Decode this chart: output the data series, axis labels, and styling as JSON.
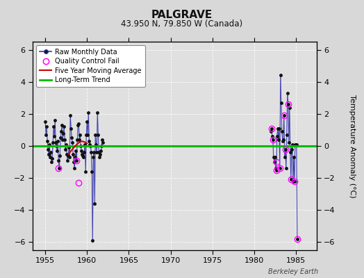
{
  "title": "PALGRAVE",
  "subtitle": "43.950 N, 79.850 W (Canada)",
  "ylabel": "Temperature Anomaly (°C)",
  "credit": "Berkeley Earth",
  "xlim": [
    1953.5,
    1987.5
  ],
  "ylim": [
    -6.5,
    6.5
  ],
  "yticks": [
    -6,
    -4,
    -2,
    0,
    2,
    4,
    6
  ],
  "xticks": [
    1955,
    1960,
    1965,
    1970,
    1975,
    1980,
    1985
  ],
  "bg_color": "#d8d8d8",
  "plot_bg_color": "#e0e0e0",
  "grid_color": "#ffffff",
  "line_color": "#5555bb",
  "dot_color": "#111111",
  "qc_color": "#ff00ff",
  "moving_avg_color": "#cc0000",
  "trend_color": "#00bb00",
  "cluster1": {
    "1955": [
      1.5,
      0.7,
      1.2,
      0.3,
      -0.2,
      -0.5,
      0.1,
      -0.7,
      -0.4,
      -1.0,
      -0.8,
      0.2
    ],
    "1956": [
      1.2,
      0.6,
      1.6,
      0.2,
      0.0,
      -0.3,
      0.3,
      -0.9,
      -1.4,
      -0.6,
      0.5,
      0.9
    ],
    "1957": [
      1.3,
      0.4,
      0.8,
      1.2,
      0.4,
      -0.2,
      0.1,
      -0.5,
      -0.9,
      -0.6,
      -0.1,
      -0.7
    ],
    "1958": [
      1.9,
      1.1,
      0.5,
      0.2,
      -0.5,
      -1.0,
      -1.4,
      -0.7,
      -0.3,
      -0.9,
      0.4,
      1.3
    ],
    "1959": [
      1.4,
      0.4,
      0.7,
      0.0,
      -0.3,
      -0.5,
      -0.6,
      -0.7,
      -0.4,
      0.1,
      -1.6,
      0.7
    ],
    "1960": [
      1.5,
      0.7,
      2.1,
      0.3,
      0.1,
      0.0,
      -0.4,
      -1.6,
      -5.9,
      -0.7,
      -0.4,
      -3.6
    ],
    "1961": [
      0.7,
      0.1,
      -0.4,
      2.1,
      0.7,
      -0.4,
      -0.7,
      -0.5,
      -0.3,
      0.0,
      0.4,
      0.2
    ]
  },
  "cluster2": {
    "1982": [
      0.9,
      1.1,
      0.6,
      0.4,
      -0.7,
      -1.0,
      -0.7,
      -1.4,
      -1.5,
      0.6,
      1.1,
      0.4
    ],
    "1983": [
      1.1,
      -1.4,
      4.4,
      2.7,
      0.9,
      0.3,
      0.4,
      1.9,
      -0.7,
      -0.2,
      -1.4,
      0.7
    ],
    "1984": [
      3.3,
      2.6,
      0.2,
      2.4,
      -0.4,
      -2.1,
      -0.2,
      0.1,
      -2.2,
      -0.7,
      -2.2,
      0.1
    ],
    "1985": [
      0.1,
      0.1,
      -5.8
    ]
  },
  "qc_points_c1": [
    [
      1956.583,
      -1.4
    ],
    [
      1958.75,
      -0.9
    ],
    [
      1959.0,
      -2.3
    ]
  ],
  "qc_points_c2": [
    [
      1982.083,
      1.1
    ],
    [
      1982.25,
      0.4
    ],
    [
      1982.667,
      -1.0
    ],
    [
      1982.667,
      -1.5
    ],
    [
      1983.083,
      -1.4
    ],
    [
      1983.583,
      1.9
    ],
    [
      1983.75,
      -0.2
    ],
    [
      1984.083,
      2.6
    ],
    [
      1984.417,
      -2.1
    ],
    [
      1984.833,
      -2.2
    ],
    [
      1985.167,
      -5.8
    ]
  ],
  "moving_avg_x": [
    1957.8,
    1958.1,
    1958.4,
    1958.7,
    1959.0,
    1959.3,
    1959.7,
    1960.0
  ],
  "moving_avg_y": [
    -0.5,
    -0.3,
    -0.1,
    0.05,
    0.2,
    0.3,
    0.25,
    0.15
  ],
  "trend_x": [
    1953.5,
    1987.5
  ],
  "trend_y": [
    0.0,
    0.0
  ]
}
